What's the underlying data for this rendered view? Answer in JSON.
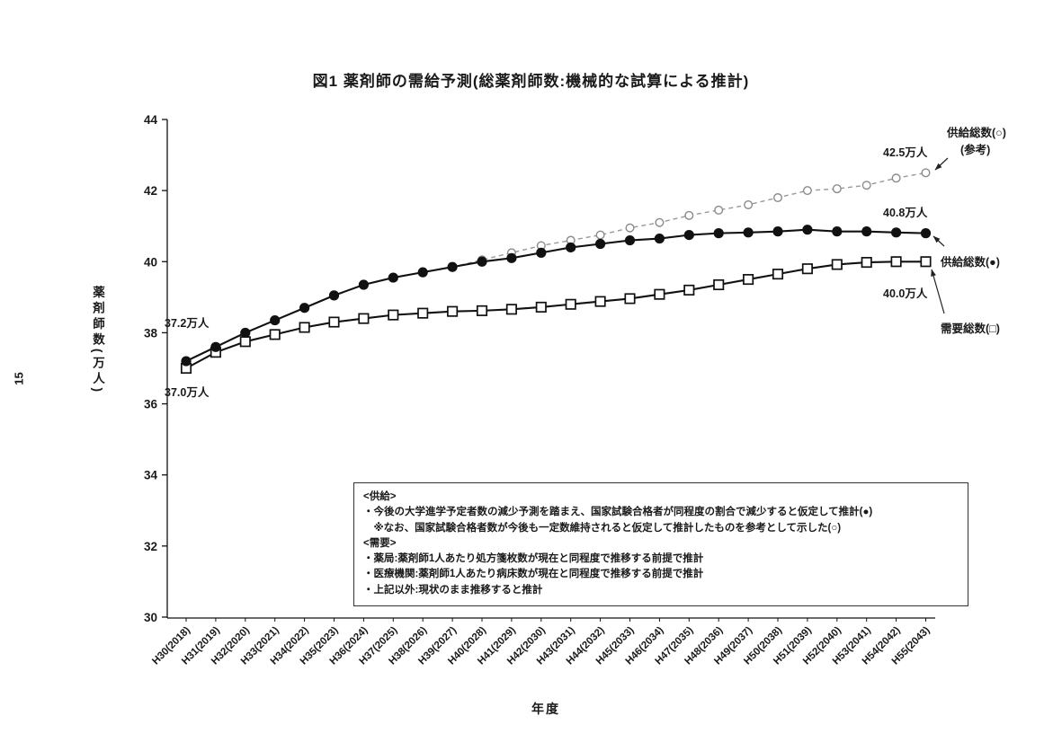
{
  "page": {
    "number": "15"
  },
  "chart_data": {
    "type": "line",
    "title": "図1 薬剤師の需給予測(総薬剤師数:機械的な試算による推計)",
    "xlabel": "年度",
    "ylabel": "薬剤師数(万人)",
    "ylim": [
      30,
      44
    ],
    "yticks": [
      30,
      32,
      34,
      36,
      38,
      40,
      42,
      44
    ],
    "grid": false,
    "legend_position": "right",
    "categories": [
      "H30(2018)",
      "H31(2019)",
      "H32(2020)",
      "H33(2021)",
      "H34(2022)",
      "H35(2023)",
      "H36(2024)",
      "H37(2025)",
      "H38(2026)",
      "H39(2027)",
      "H40(2028)",
      "H41(2029)",
      "H42(2030)",
      "H43(2031)",
      "H44(2032)",
      "H45(2033)",
      "H46(2034)",
      "H47(2035)",
      "H48(2036)",
      "H49(2037)",
      "H50(2038)",
      "H51(2039)",
      "H52(2040)",
      "H53(2041)",
      "H54(2042)",
      "H55(2043)"
    ],
    "series": [
      {
        "name": "供給総数(○)(参考)",
        "marker": "open-circle",
        "line": "dashed",
        "color": "#999999",
        "values": [
          37.2,
          37.6,
          38.0,
          38.35,
          38.7,
          39.05,
          39.35,
          39.55,
          39.7,
          39.85,
          40.05,
          40.25,
          40.45,
          40.6,
          40.75,
          40.95,
          41.1,
          41.3,
          41.45,
          41.6,
          41.8,
          42.0,
          42.05,
          42.15,
          42.35,
          42.5
        ]
      },
      {
        "name": "需要総数(□)",
        "marker": "open-square",
        "line": "solid",
        "color": "#111111",
        "values": [
          37.0,
          37.45,
          37.75,
          37.95,
          38.15,
          38.3,
          38.4,
          38.5,
          38.55,
          38.6,
          38.62,
          38.66,
          38.72,
          38.8,
          38.88,
          38.96,
          39.08,
          39.2,
          39.35,
          39.5,
          39.65,
          39.8,
          39.92,
          39.98,
          40.0,
          40.0
        ]
      },
      {
        "name": "供給総数(●)",
        "marker": "filled-circle",
        "line": "solid",
        "color": "#111111",
        "values": [
          37.2,
          37.6,
          38.0,
          38.35,
          38.7,
          39.05,
          39.35,
          39.55,
          39.7,
          39.85,
          40.0,
          40.1,
          40.25,
          40.4,
          40.5,
          40.6,
          40.65,
          40.75,
          40.8,
          40.82,
          40.85,
          40.9,
          40.85,
          40.85,
          40.82,
          40.8
        ]
      }
    ],
    "annotations": {
      "supply_start": "37.2万人",
      "demand_start": "37.0万人",
      "open_end": "42.5万人",
      "supply_end": "40.8万人",
      "demand_end": "40.0万人"
    },
    "legend": {
      "open": "供給総数(○)",
      "open_sub": "(参考)",
      "supply": "供給総数(●)",
      "demand": "需要総数(□)"
    }
  },
  "note": {
    "lines": [
      "<供給>",
      "・今後の大学進学予定者数の減少予測を踏まえ、国家試験合格者が同程度の割合で減少すると仮定して推計(●)",
      "　※なお、国家試験合格者数が今後も一定数維持されると仮定して推計したものを参考として示した(○)",
      "<需要>",
      "・薬局:薬剤師1人あたり処方箋枚数が現在と同程度で推移する前提で推計",
      "・医療機関:薬剤師1人あたり病床数が現在と同程度で推移する前提で推計",
      "・上記以外:現状のまま推移すると推計"
    ]
  }
}
